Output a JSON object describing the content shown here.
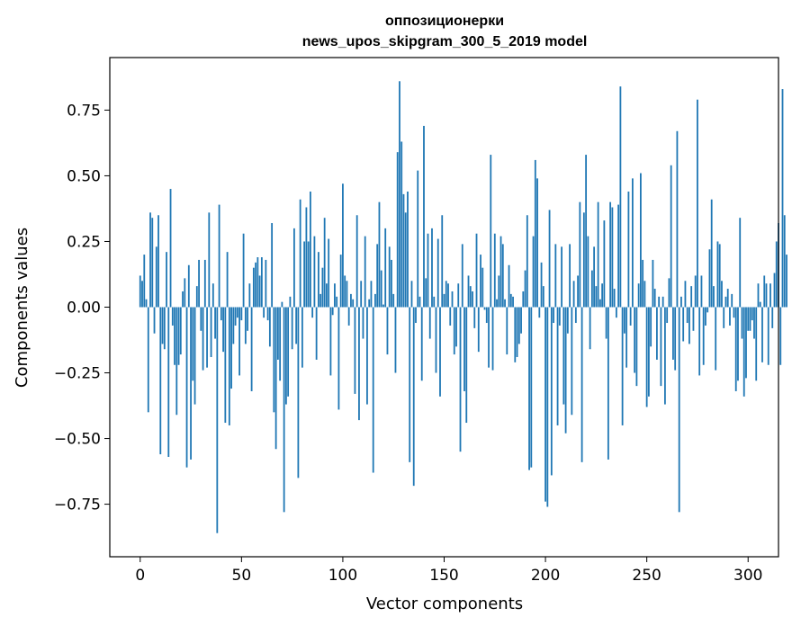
{
  "chart_data": {
    "type": "bar",
    "title": "оппозиционерки",
    "subtitle": "news_upos_skipgram_300_5_2019 model",
    "xlabel": "Vector components",
    "ylabel": "Components values",
    "xlim": [
      -15,
      315
    ],
    "ylim": [
      -0.95,
      0.95
    ],
    "x_ticks": [
      0,
      50,
      100,
      150,
      200,
      250,
      300
    ],
    "y_ticks": [
      -0.75,
      -0.5,
      -0.25,
      0.0,
      0.25,
      0.5,
      0.75
    ],
    "x_tick_labels": [
      "0",
      "50",
      "100",
      "150",
      "200",
      "250",
      "300"
    ],
    "y_tick_labels": [
      "−0.75",
      "−0.50",
      "−0.25",
      "0.00",
      "0.25",
      "0.50",
      "0.75"
    ],
    "bar_color": "#1f77b4",
    "grid": false,
    "values": [
      0.12,
      0.1,
      0.2,
      0.03,
      -0.4,
      0.36,
      0.34,
      -0.1,
      0.23,
      0.35,
      -0.56,
      -0.14,
      -0.16,
      0.21,
      -0.57,
      0.45,
      -0.07,
      -0.22,
      -0.41,
      -0.22,
      -0.18,
      0.06,
      0.11,
      -0.61,
      0.16,
      -0.58,
      -0.28,
      -0.37,
      0.08,
      0.18,
      -0.09,
      -0.24,
      0.18,
      -0.23,
      0.36,
      -0.19,
      0.09,
      -0.12,
      -0.86,
      0.39,
      -0.05,
      -0.17,
      -0.44,
      0.21,
      -0.45,
      -0.31,
      -0.14,
      -0.07,
      -0.04,
      -0.26,
      -0.05,
      0.28,
      -0.14,
      -0.09,
      0.09,
      -0.32,
      0.15,
      0.17,
      0.19,
      0.12,
      0.19,
      -0.04,
      0.18,
      -0.05,
      -0.15,
      0.32,
      -0.4,
      -0.54,
      -0.2,
      -0.28,
      0.02,
      -0.78,
      -0.37,
      -0.34,
      0.04,
      -0.16,
      0.3,
      -0.14,
      -0.65,
      0.41,
      -0.23,
      0.25,
      0.38,
      0.25,
      0.44,
      -0.04,
      0.27,
      -0.2,
      0.21,
      0.05,
      0.15,
      0.34,
      0.09,
      0.26,
      -0.26,
      -0.03,
      0.09,
      0.04,
      -0.39,
      0.2,
      0.47,
      0.12,
      0.1,
      -0.07,
      0.05,
      0.03,
      -0.33,
      0.35,
      -0.43,
      0.1,
      -0.12,
      0.27,
      -0.37,
      0.03,
      0.1,
      -0.63,
      0.05,
      0.24,
      0.4,
      0.14,
      0.01,
      0.3,
      -0.18,
      0.23,
      0.18,
      0.05,
      -0.25,
      0.59,
      0.86,
      0.63,
      0.43,
      0.36,
      0.44,
      -0.59,
      0.1,
      -0.68,
      -0.06,
      0.52,
      0.04,
      -0.28,
      0.69,
      0.11,
      0.28,
      -0.12,
      0.3,
      0.04,
      -0.25,
      0.26,
      -0.34,
      0.35,
      0.05,
      0.1,
      0.09,
      -0.07,
      0.06,
      -0.18,
      -0.15,
      0.09,
      -0.55,
      0.24,
      -0.32,
      -0.44,
      0.12,
      0.08,
      0.06,
      -0.08,
      0.28,
      -0.17,
      0.2,
      0.15,
      -0.01,
      -0.06,
      -0.23,
      0.58,
      -0.24,
      0.28,
      0.03,
      0.12,
      0.27,
      0.24,
      0.03,
      -0.18,
      0.16,
      0.05,
      0.04,
      -0.21,
      -0.19,
      -0.14,
      -0.1,
      0.06,
      0.14,
      0.35,
      -0.62,
      -0.61,
      0.27,
      0.56,
      0.49,
      -0.04,
      0.17,
      0.08,
      -0.74,
      -0.76,
      0.37,
      -0.64,
      -0.06,
      0.24,
      -0.45,
      -0.07,
      0.23,
      -0.37,
      -0.48,
      -0.1,
      0.24,
      -0.41,
      0.1,
      -0.06,
      0.12,
      0.4,
      -0.59,
      0.36,
      0.58,
      0.27,
      -0.16,
      0.14,
      0.23,
      0.08,
      0.4,
      0.03,
      0.09,
      0.33,
      -0.12,
      -0.58,
      0.4,
      0.38,
      0.07,
      -0.04,
      0.39,
      0.84,
      -0.45,
      -0.1,
      -0.23,
      0.44,
      -0.07,
      0.49,
      -0.25,
      -0.3,
      0.09,
      0.51,
      0.18,
      0.1,
      -0.38,
      -0.34,
      -0.15,
      0.18,
      0.07,
      -0.2,
      0.04,
      -0.3,
      0.04,
      -0.37,
      -0.06,
      0.11,
      0.54,
      -0.2,
      -0.24,
      0.67,
      -0.78,
      0.04,
      -0.13,
      0.1,
      -0.06,
      -0.14,
      0.08,
      -0.09,
      0.12,
      0.79,
      -0.26,
      0.12,
      -0.22,
      -0.07,
      -0.02,
      0.22,
      0.41,
      0.08,
      -0.24,
      0.25,
      0.24,
      0.1,
      -0.08,
      0.04,
      0.07,
      -0.07,
      0.05,
      -0.04,
      -0.32,
      -0.28,
      0.34,
      -0.12,
      -0.34,
      -0.27,
      -0.09,
      -0.09,
      -0.05,
      -0.12,
      -0.28,
      0.09,
      0.02,
      -0.21,
      0.12,
      0.09,
      -0.22,
      0.09,
      -0.08,
      0.13,
      0.25,
      0.32,
      -0.22,
      0.83,
      0.35,
      0.2
    ]
  }
}
